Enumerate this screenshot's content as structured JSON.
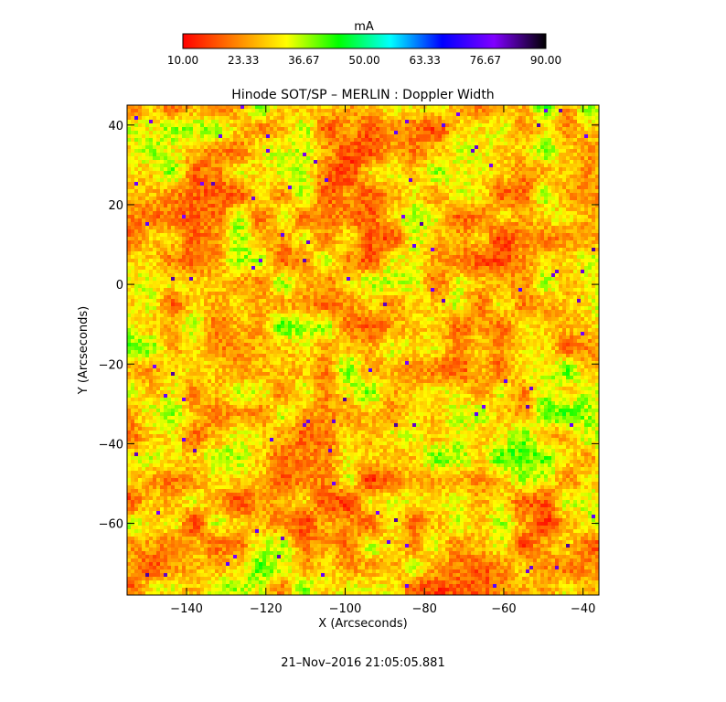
{
  "chart_data": {
    "type": "heatmap",
    "title": "Hinode SOT/SP – MERLIN : Doppler Width",
    "xlabel": "X (Arcseconds)",
    "ylabel": "Y (Arcseconds)",
    "xlim": [
      -155,
      -36
    ],
    "ylim": [
      -78,
      45
    ],
    "x_ticks": [
      -140,
      -120,
      -100,
      -80,
      -60,
      -40
    ],
    "y_ticks": [
      -60,
      -40,
      -20,
      0,
      20,
      40
    ],
    "colorbar": {
      "label": "mA",
      "range": [
        10.0,
        90.0
      ],
      "tick_labels": [
        "10.00",
        "23.33",
        "36.67",
        "50.00",
        "63.33",
        "76.67",
        "90.00"
      ],
      "colors": [
        "#ff0000",
        "#ff8000",
        "#ffff00",
        "#00ff00",
        "#00ffff",
        "#0000ff",
        "#8000ff",
        "#000000"
      ]
    },
    "field_summary": {
      "typical_value_mA": 28,
      "spread_mA": 12,
      "description_values": "granular pattern dominated by red-orange-yellow (15-40 mA), with green/cyan lanes (45-60 mA) and sparse blue specks (70+ mA)"
    },
    "timestamp": "21–Nov–2016 21:05:05.881"
  }
}
